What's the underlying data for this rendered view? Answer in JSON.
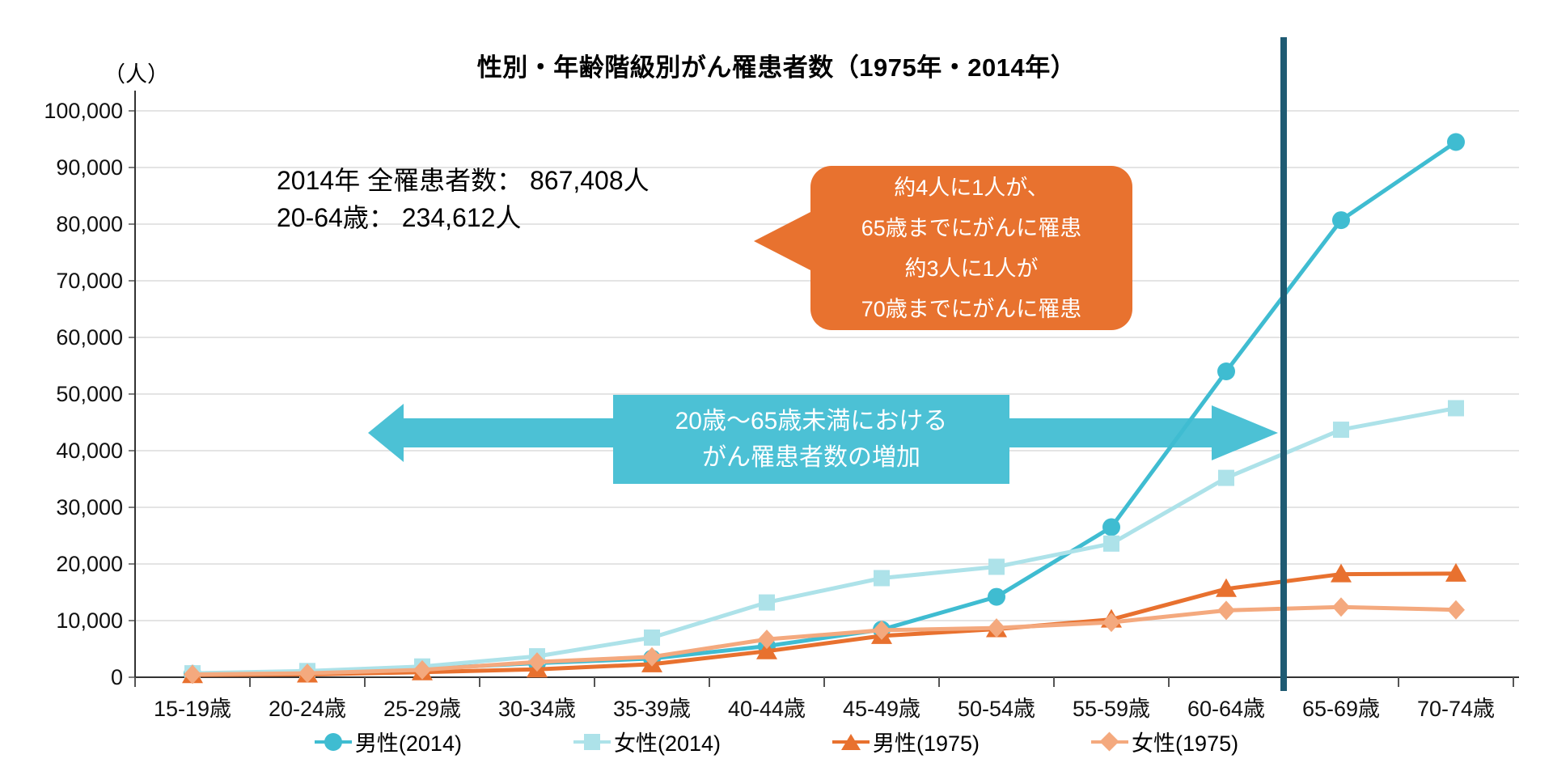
{
  "title": "性別・年齢階級別がん罹患者数（1975年・2014年）",
  "y_unit_label": "（人）",
  "stats_note": {
    "line1": "2014年 全罹患者数： 867,408人",
    "line2": "20-64歳： 234,612人"
  },
  "callout": {
    "bg_color": "#E8722F",
    "lines": [
      "約4人に1人が、",
      "65歳までにがんに罹患",
      "約3人に1人が",
      "70歳までにがんに罹患"
    ]
  },
  "banner": {
    "bg_color": "#4CC1D5",
    "line1": "20歳～65歳未満における",
    "line2": "がん罹患者数の増加"
  },
  "chart_data": {
    "type": "line",
    "title": "性別・年齢階級別がん罹患者数（1975年・2014年）",
    "xlabel": "",
    "ylabel": "（人）",
    "ylim": [
      0,
      100000
    ],
    "y_tick_step": 10000,
    "y_tick_labels": [
      "0",
      "10,000",
      "20,000",
      "30,000",
      "40,000",
      "50,000",
      "60,000",
      "70,000",
      "80,000",
      "90,000",
      "100,000"
    ],
    "grid": true,
    "legend_position": "bottom",
    "categories": [
      "15-19歳",
      "20-24歳",
      "25-29歳",
      "30-34歳",
      "35-39歳",
      "40-44歳",
      "45-49歳",
      "50-54歳",
      "55-59歳",
      "60-64歳",
      "65-69歳",
      "70-74歳"
    ],
    "series": [
      {
        "name": "男性(2014)",
        "color": "#3FBCD1",
        "marker": "circle",
        "values": [
          600,
          900,
          1500,
          2500,
          3300,
          5500,
          8400,
          14200,
          26500,
          54000,
          80700,
          94500
        ]
      },
      {
        "name": "女性(2014)",
        "color": "#ADE2E9",
        "marker": "square",
        "values": [
          700,
          1100,
          1900,
          3700,
          7000,
          13200,
          17500,
          19500,
          23600,
          35200,
          43700,
          47500
        ]
      },
      {
        "name": "男性(1975)",
        "color": "#E8712F",
        "marker": "triangle",
        "values": [
          400,
          500,
          900,
          1400,
          2300,
          4600,
          7300,
          8500,
          10200,
          15600,
          18200,
          18300
        ]
      },
      {
        "name": "女性(1975)",
        "color": "#F4A97E",
        "marker": "diamond",
        "values": [
          500,
          700,
          1300,
          2700,
          3600,
          6700,
          8300,
          8700,
          9700,
          11800,
          12400,
          11900
        ]
      }
    ],
    "reference_line": {
      "label": "age 65 boundary (between 60-64歳 and 65-69歳)",
      "color": "#1F5B73"
    }
  }
}
